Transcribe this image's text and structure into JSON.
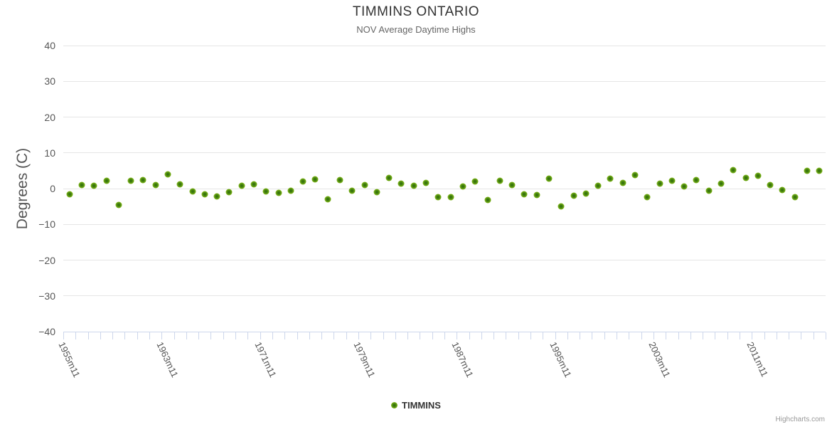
{
  "title": "TIMMINS ONTARIO",
  "subtitle": "NOV Average Daytime Highs",
  "credits": "Highcharts.com",
  "legend": {
    "label": "TIMMINS"
  },
  "colors": {
    "title": "#333333",
    "subtitle": "#666666",
    "axis_labels": "#555555",
    "gridline": "#e6e6e6",
    "axis_line": "#ccd6eb",
    "marker_outer": "#8dc32a",
    "marker_inner": "#2e6d0a",
    "credits": "#999999"
  },
  "chart_data": {
    "type": "scatter",
    "title": "TIMMINS ONTARIO",
    "subtitle": "NOV Average Daytime Highs",
    "xlabel": "",
    "ylabel": "Degrees (C)",
    "ylim": [
      -40,
      40
    ],
    "ytick_interval": 10,
    "ytick_labels": [
      "40",
      "30",
      "20",
      "10",
      "0",
      "−10",
      "−20",
      "−30",
      "−40"
    ],
    "grid": true,
    "legend_position": "bottom-center",
    "x_label_step": 8,
    "categories": [
      "1955m11",
      "1956m11",
      "1957m11",
      "1958m11",
      "1959m11",
      "1960m11",
      "1961m11",
      "1962m11",
      "1963m11",
      "1964m11",
      "1965m11",
      "1966m11",
      "1967m11",
      "1968m11",
      "1969m11",
      "1970m11",
      "1971m11",
      "1972m11",
      "1973m11",
      "1974m11",
      "1975m11",
      "1976m11",
      "1977m11",
      "1978m11",
      "1979m11",
      "1980m11",
      "1981m11",
      "1982m11",
      "1983m11",
      "1984m11",
      "1985m11",
      "1986m11",
      "1987m11",
      "1988m11",
      "1989m11",
      "1990m11",
      "1991m11",
      "1992m11",
      "1993m11",
      "1994m11",
      "1995m11",
      "1996m11",
      "1997m11",
      "1998m11",
      "1999m11",
      "2000m11",
      "2001m11",
      "2002m11",
      "2003m11",
      "2004m11",
      "2005m11",
      "2006m11",
      "2007m11",
      "2008m11",
      "2009m11",
      "2010m11",
      "2011m11",
      "2012m11",
      "2013m11",
      "2014m11",
      "2015m11",
      "2016m11"
    ],
    "series": [
      {
        "name": "TIMMINS",
        "values": [
          -1.5,
          0.9,
          0.7,
          2.2,
          -4.5,
          2.2,
          2.3,
          0.9,
          4.0,
          1.1,
          -0.7,
          -1.5,
          -2.1,
          -1.0,
          0.8,
          1.2,
          -0.8,
          -1.2,
          -0.6,
          2.0,
          2.5,
          -3.0,
          2.3,
          -0.5,
          0.9,
          -0.9,
          3.0,
          1.3,
          0.8,
          1.5,
          -2.4,
          -2.4,
          0.5,
          2.0,
          -3.2,
          2.2,
          1.0,
          -1.6,
          -1.8,
          2.7,
          -5.0,
          -2.0,
          -1.4,
          0.8,
          2.8,
          1.5,
          3.8,
          -2.3,
          1.4,
          2.2,
          0.5,
          2.3,
          -0.5,
          1.3,
          5.1,
          3.0,
          3.5,
          1.0,
          -0.4,
          -2.4,
          4.9,
          5.0
        ]
      }
    ]
  }
}
